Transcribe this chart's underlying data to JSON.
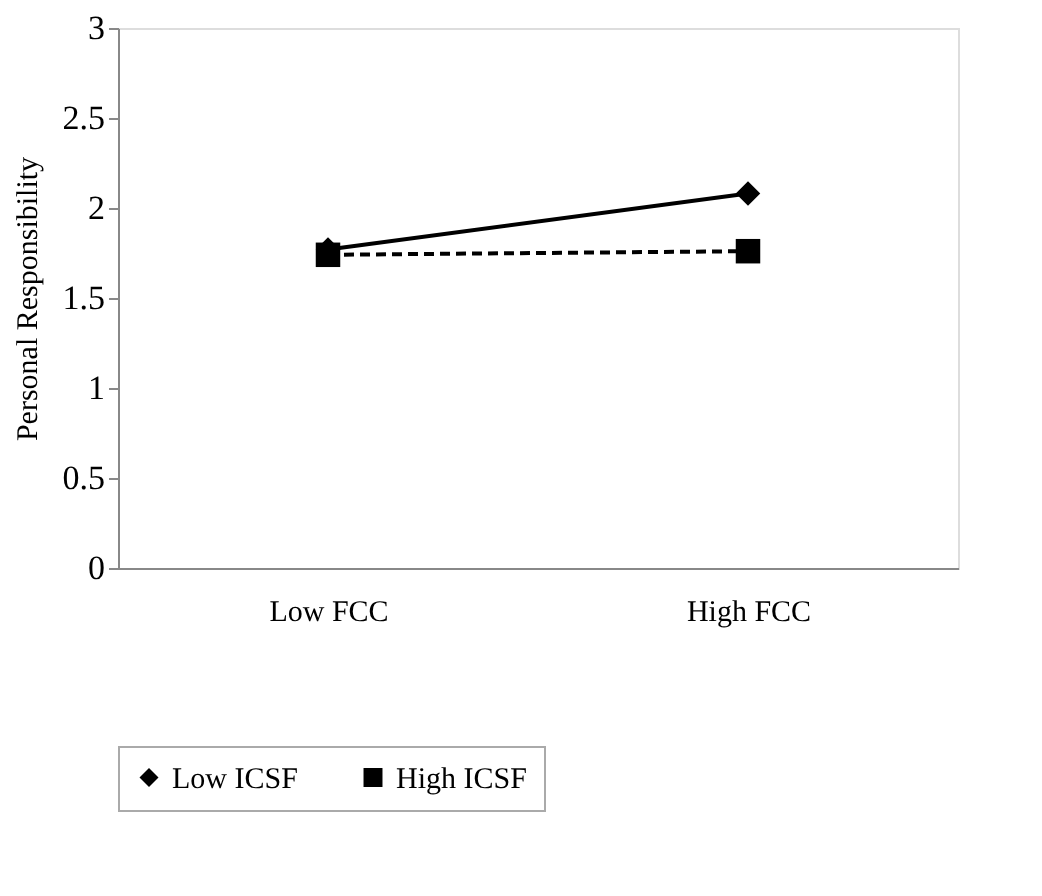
{
  "chart_data": {
    "type": "line",
    "ylabel": "Personal Responsibility",
    "categories": [
      "Low FCC",
      "High FCC"
    ],
    "series": [
      {
        "name": "Low ICSF",
        "color": "#000000",
        "values": [
          1.77,
          2.08
        ],
        "marker": "diamond",
        "line_style": "solid"
      },
      {
        "name": "High ICSF",
        "color": "#000000",
        "values": [
          1.74,
          1.76
        ],
        "marker": "square",
        "line_style": "dashed"
      }
    ],
    "ylim": [
      0,
      3
    ],
    "yticks": [
      0,
      0.5,
      1,
      1.5,
      2,
      2.5,
      3
    ],
    "grid": false,
    "legend": "bottom"
  }
}
